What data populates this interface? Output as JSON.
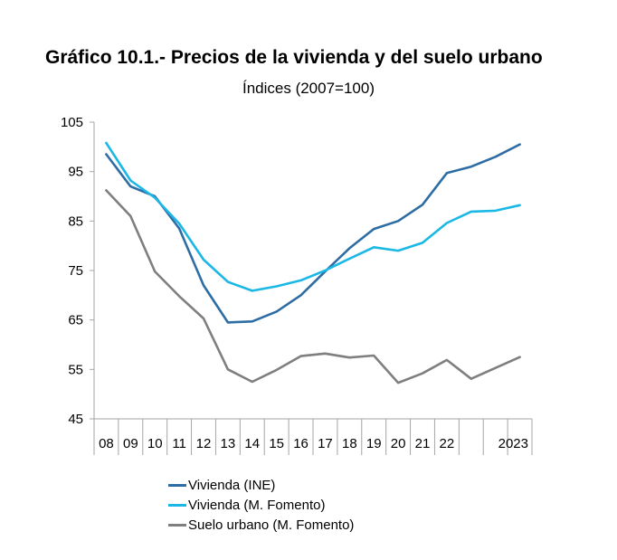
{
  "chart_data": {
    "type": "line",
    "title": "Gráfico 10.1.- Precios de la vivienda y del suelo urbano",
    "subtitle": "Índices (2007=100)",
    "x_tick_labels": [
      "08",
      "09",
      "10",
      "11",
      "12",
      "13",
      "14",
      "15",
      "16",
      "17",
      "18",
      "19",
      "20",
      "21",
      "22",
      "",
      "",
      "2023"
    ],
    "y_ticks": [
      45,
      55,
      65,
      75,
      85,
      95,
      105
    ],
    "ylim": [
      45,
      105
    ],
    "grid": false,
    "legend_position": "bottom",
    "x": [
      "2008",
      "2009",
      "2010",
      "2011",
      "2012",
      "2013",
      "2014",
      "2015",
      "2016",
      "2017",
      "2018",
      "2019",
      "2020",
      "2021",
      "2022",
      "2022b",
      "2023a",
      "2023b"
    ],
    "series": [
      {
        "name": "Vivienda (INE)",
        "color": "#2e6da4",
        "values": [
          98.5,
          92,
          90,
          83.5,
          72,
          64.5,
          64.7,
          66.7,
          70,
          74.8,
          79.5,
          83.4,
          85,
          88.3,
          94.7,
          96,
          98,
          100.5
        ]
      },
      {
        "name": "Vivienda (M. Fomento)",
        "color": "#1bb8e6",
        "values": [
          100.8,
          93.2,
          89.7,
          84.5,
          77.2,
          72.7,
          70.9,
          71.8,
          73,
          75,
          77.4,
          79.7,
          79,
          80.6,
          84.6,
          86.9,
          87.1,
          88.2
        ]
      },
      {
        "name": "Suelo urbano (M. Fomento)",
        "color": "#7f7f7f",
        "values": [
          91.2,
          86,
          74.8,
          69.8,
          65.3,
          55,
          52.5,
          54.9,
          57.7,
          58.2,
          57.4,
          57.8,
          52.3,
          54.2,
          56.9,
          53.1,
          55.3,
          57.5
        ]
      }
    ]
  }
}
